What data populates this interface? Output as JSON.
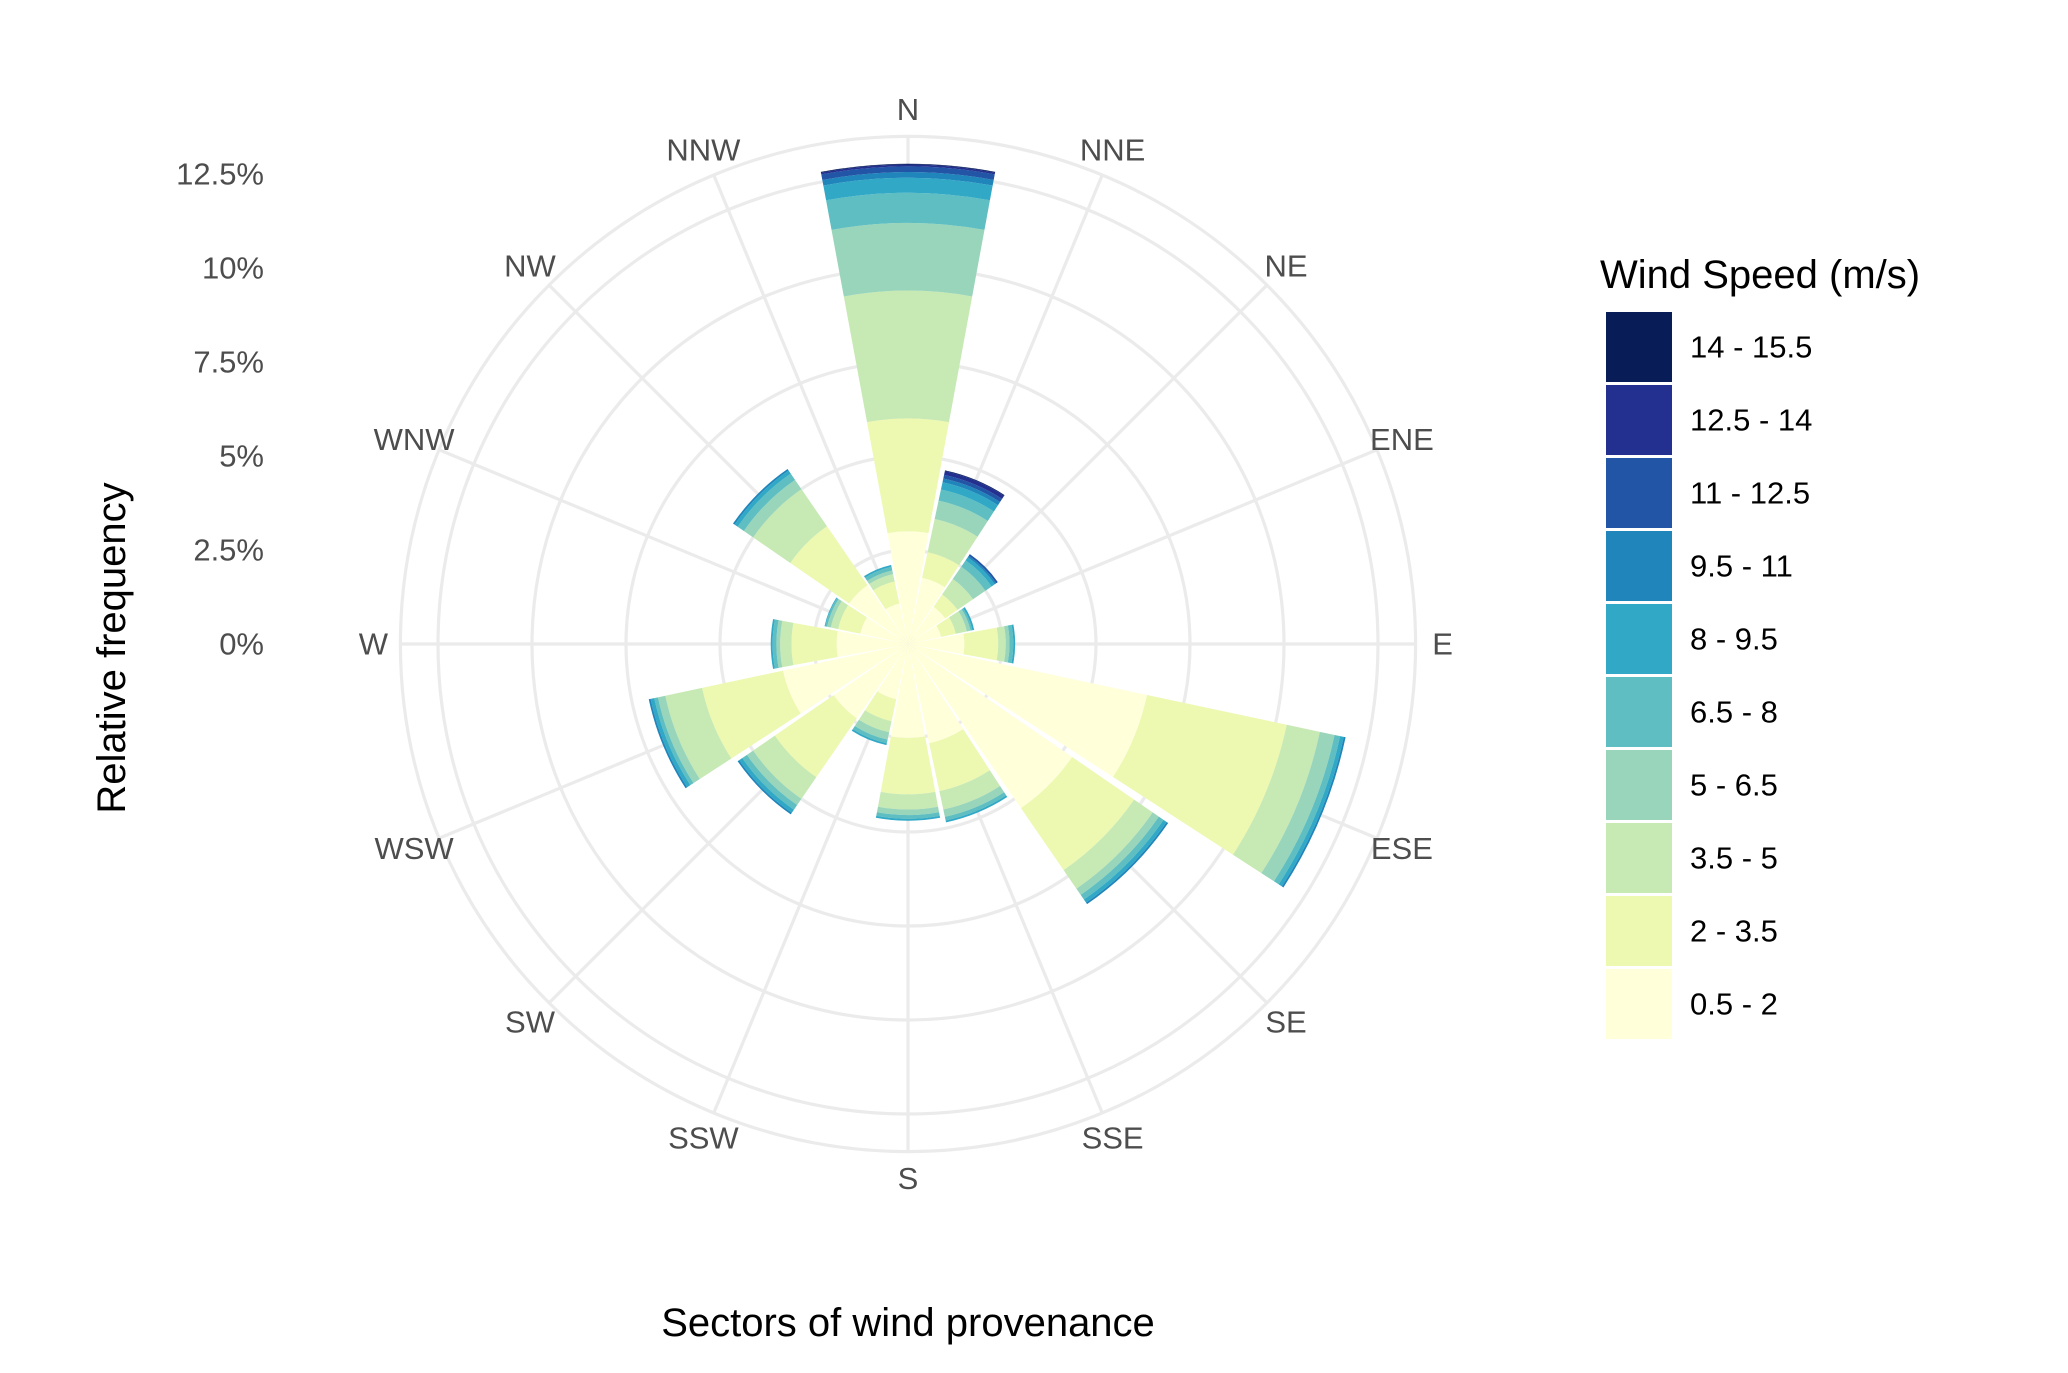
{
  "chart_data": {
    "type": "stacked-polar-bar",
    "title": "",
    "xlabel": "Sectors of wind provenance",
    "ylabel": "Relative frequency",
    "ylim": [
      0,
      13.5
    ],
    "y_ticks": [
      "0%",
      "2.5%",
      "5%",
      "7.5%",
      "10%",
      "12.5%"
    ],
    "y_tick_values": [
      0,
      2.5,
      5,
      7.5,
      10,
      12.5
    ],
    "grid": true,
    "legend_position": "right",
    "legend_title": "Wind Speed (m/s)",
    "categories": [
      "N",
      "NNE",
      "NE",
      "ENE",
      "E",
      "ESE",
      "SE",
      "SSE",
      "S",
      "SSW",
      "SW",
      "WSW",
      "W",
      "WNW",
      "NW",
      "NNW"
    ],
    "series": [
      {
        "name": "0.5 - 2",
        "color": "#ffffd9",
        "values": [
          3.0,
          1.8,
          1.2,
          0.9,
          1.5,
          6.5,
          5.3,
          2.7,
          2.5,
          1.5,
          2.4,
          3.4,
          1.9,
          1.3,
          1.9,
          1.1
        ]
      },
      {
        "name": "2 - 3.5",
        "color": "#edf8b1",
        "values": [
          3.0,
          0.7,
          0.4,
          0.4,
          0.9,
          3.8,
          2.0,
          1.3,
          1.5,
          0.6,
          1.9,
          2.2,
          1.2,
          0.6,
          1.9,
          0.6
        ]
      },
      {
        "name": "3.5 - 5",
        "color": "#c7e9b4",
        "values": [
          3.4,
          0.9,
          0.5,
          0.3,
          0.2,
          0.9,
          0.6,
          0.5,
          0.4,
          0.3,
          0.7,
          1.0,
          0.3,
          0.2,
          1.2,
          0.2
        ]
      },
      {
        "name": "5 - 6.5",
        "color": "#99d5ba",
        "values": [
          1.8,
          0.5,
          0.4,
          0.1,
          0.1,
          0.4,
          0.2,
          0.2,
          0.15,
          0.2,
          0.2,
          0.2,
          0.1,
          0.1,
          0.3,
          0.1
        ]
      },
      {
        "name": "6.5 - 8",
        "color": "#5ebec1",
        "values": [
          0.8,
          0.3,
          0.2,
          0.05,
          0.1,
          0.15,
          0.15,
          0.1,
          0.1,
          0.1,
          0.15,
          0.1,
          0.1,
          0.05,
          0.2,
          0.1
        ]
      },
      {
        "name": "8 - 9.5",
        "color": "#31a9c6",
        "values": [
          0.4,
          0.2,
          0.1,
          0.05,
          0.05,
          0.1,
          0.1,
          0.05,
          0.05,
          0.05,
          0.1,
          0.1,
          0.05,
          0.02,
          0.1,
          0.05
        ]
      },
      {
        "name": "9.5 - 11",
        "color": "#1f85bb",
        "values": [
          0.15,
          0.1,
          0.05,
          0.0,
          0.0,
          0.05,
          0.05,
          0.0,
          0.0,
          0.0,
          0.05,
          0.05,
          0.0,
          0.0,
          0.05,
          0.0
        ]
      },
      {
        "name": "11 - 12.5",
        "color": "#2255a6",
        "values": [
          0.15,
          0.1,
          0.05,
          0.0,
          0.0,
          0.0,
          0.0,
          0.0,
          0.0,
          0.0,
          0.0,
          0.0,
          0.0,
          0.0,
          0.0,
          0.0
        ]
      },
      {
        "name": "12.5 - 14",
        "color": "#233090",
        "values": [
          0.05,
          0.1,
          0.0,
          0.0,
          0.0,
          0.0,
          0.0,
          0.0,
          0.0,
          0.0,
          0.0,
          0.0,
          0.0,
          0.0,
          0.0,
          0.0
        ]
      },
      {
        "name": "14 - 15.5",
        "color": "#081d58",
        "values": [
          0.02,
          0.02,
          0.0,
          0.0,
          0.0,
          0.0,
          0.0,
          0.0,
          0.0,
          0.0,
          0.0,
          0.0,
          0.0,
          0.0,
          0.0,
          0.0
        ]
      }
    ]
  }
}
